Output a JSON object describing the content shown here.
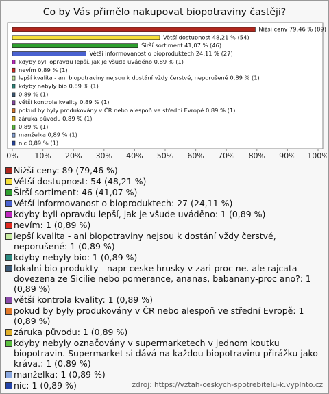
{
  "chart_data": {
    "type": "bar",
    "orientation": "horizontal",
    "title": "Co by Vás přimělo nakupovat biopotraviny častěji?",
    "categories": [
      "Nižší ceny",
      "Větší dostupnost",
      "Širší sortiment",
      "Větší informovanost o bioproduktech",
      "kdyby byli opravdu lepší, jak je všude uváděno",
      "nevím",
      "lepší kvalita - ani biopotraviny nejsou k dostání vždy čerstvé, neporušené",
      "kdyby nebyly bio",
      "lokalni bio produkty - napr ceske hrusky v zari-proc ne. ale rajcata dovezena ze Sicilie nebo pomerance, ananas, babanany-proc ano?",
      "větší kontrola kvality",
      "pokud by byly produkovány v ČR nebo alespoň ve střední Evropě",
      "záruka původu",
      "kdyby nebyly označovány v supermarketech v jednom koutku biopotravin. Supermarket si dává na každou biopotravinu přirážku jako kráva.",
      "manželka",
      "nic"
    ],
    "values": [
      79.46,
      48.21,
      41.07,
      24.11,
      0.89,
      0.89,
      0.89,
      0.89,
      0.89,
      0.89,
      0.89,
      0.89,
      0.89,
      0.89,
      0.89
    ],
    "counts": [
      89,
      54,
      46,
      27,
      1,
      1,
      1,
      1,
      1,
      1,
      1,
      1,
      1,
      1,
      1
    ],
    "value_labels": [
      "Nižší ceny 79,46 % (89)",
      "Větší dostupnost 48,21 % (54)",
      "Širší sortiment 41,07 % (46)",
      "Větší informovanost o bioproduktech 24,11 % (27)",
      "kdyby byli opravdu lepší, jak je všude uváděno 0,89 % (1)",
      "nevím 0,89 % (1)",
      "lepší kvalita - ani biopotraviny nejsou k dostání vždy čerstvé, neporušené 0,89 % (1)",
      "kdyby nebyly bio 0,89 % (1)",
      "0,89 % (1)",
      "větší kontrola kvality 0,89 % (1)",
      "pokud by byly produkovány v ČR nebo alespoň ve střední Evropě 0,89 % (1)",
      "záruka původu 0,89 % (1)",
      "0,89 % (1)",
      "manželka 0,89 % (1)",
      "nic 0,89 % (1)"
    ],
    "legend_labels": [
      "Nižší ceny: 89 (79,46 %)",
      "Větší dostupnost: 54 (48,21 %)",
      "Širší sortiment: 46 (41,07 %)",
      "Větší informovanost o bioproduktech: 27 (24,11 %)",
      "kdyby byli opravdu lepší, jak je všude uváděno: 1 (0,89 %)",
      "nevím: 1 (0,89 %)",
      "lepší kvalita - ani biopotraviny nejsou k dostání vždy čerstvé, neporušené: 1 (0,89 %)",
      "kdyby nebyly bio: 1 (0,89 %)",
      "lokalni bio produkty - napr ceske hrusky v zari-proc ne. ale rajcata dovezena ze Sicilie nebo pomerance, ananas, babanany-proc ano?: 1 (0,89 %)",
      "větší kontrola kvality: 1 (0,89 %)",
      "pokud by byly produkovány v ČR nebo alespoň ve střední Evropě: 1 (0,89 %)",
      "záruka původu: 1 (0,89 %)",
      "kdyby nebyly označovány v supermarketech v jednom koutku biopotravin. Supermarket si dává na každou biopotravinu přirážku jako kráva.: 1 (0,89 %)",
      "manželka: 1 (0,89 %)",
      "nic: 1 (0,89 %)"
    ],
    "colors": [
      "#b0261c",
      "#f5e03a",
      "#2fa02f",
      "#4a62d0",
      "#c028c0",
      "#e02a20",
      "#c8eca0",
      "#2a8a80",
      "#3c5a78",
      "#8a4aa8",
      "#e0782a",
      "#e0b02a",
      "#5cc040",
      "#8aa8e0",
      "#2444a8"
    ],
    "xlim": [
      0,
      100
    ],
    "xticks": [
      {
        "value": 0,
        "label": "0%"
      },
      {
        "value": 10,
        "label": "10%"
      },
      {
        "value": 20,
        "label": "20%"
      },
      {
        "value": 30,
        "label": "30%"
      },
      {
        "value": 40,
        "label": "40%"
      },
      {
        "value": 50,
        "label": "50%"
      },
      {
        "value": 60,
        "label": "60%"
      },
      {
        "value": 70,
        "label": "70%"
      },
      {
        "value": 80,
        "label": "80%"
      },
      {
        "value": 90,
        "label": "90%"
      },
      {
        "value": 100,
        "label": "100%"
      }
    ],
    "source": "zdroj: https://vztah-ceskych-spotrebitelu-k.vyplnto.cz"
  }
}
